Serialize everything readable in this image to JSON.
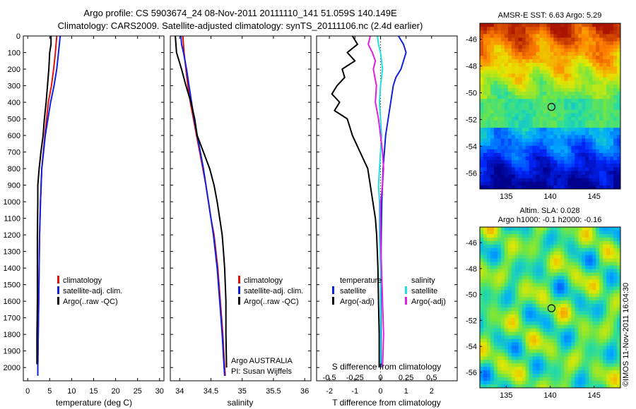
{
  "title": {
    "line1": "Argo profile: CS 5903674_24 08-Nov-2011 20111110_141 51.059S 140.149E",
    "line2": "Climatology: CARS2009. Satellite-adjusted climatology: synTS_20111106.nc (2.4d earlier)"
  },
  "colors": {
    "climatology": "#e01010",
    "satellite": "#1020e0",
    "argo": "#000000",
    "sat_salinity": "#20e0e0",
    "argo_salinity": "#e020e0"
  },
  "chart_data": [
    {
      "type": "line",
      "id": "temperature",
      "xlabel": "temperature (deg C)",
      "xlim": [
        -1,
        31
      ],
      "xticks": [
        0,
        5,
        10,
        15,
        20,
        25,
        30
      ],
      "ylim": [
        0,
        2080
      ],
      "yticks": [
        0,
        100,
        200,
        300,
        400,
        500,
        600,
        700,
        800,
        900,
        1000,
        1100,
        1200,
        1300,
        1400,
        1500,
        1600,
        1700,
        1800,
        1900,
        2000
      ],
      "legend": {
        "placement": "center-left",
        "entries": [
          "climatology",
          "satellite-adj. clim.",
          "Argo(..raw -QC)"
        ]
      },
      "series": [
        {
          "name": "climatology",
          "depth": [
            0,
            100,
            200,
            300,
            400,
            600,
            800,
            1000,
            1200,
            1400,
            1600,
            1800,
            2000,
            2050
          ],
          "values": [
            6.6,
            6.3,
            5.9,
            5.4,
            4.7,
            3.9,
            3.2,
            2.9,
            2.7,
            2.6,
            2.5,
            2.4,
            2.3,
            2.3
          ]
        },
        {
          "name": "satellite-adj. clim.",
          "depth": [
            0,
            50,
            100,
            200,
            300,
            400,
            600,
            800,
            1000,
            1200,
            1400,
            1600,
            1800,
            2000,
            2050
          ],
          "values": [
            7.4,
            7.2,
            7.0,
            6.6,
            6.0,
            5.2,
            4.0,
            3.2,
            2.9,
            2.7,
            2.6,
            2.5,
            2.4,
            2.3,
            2.3
          ]
        },
        {
          "name": "Argo(..raw -QC)",
          "depth": [
            0,
            50,
            100,
            200,
            300,
            400,
            500,
            600,
            700,
            800,
            900,
            1000,
            1200,
            1400,
            1600,
            1800,
            1980
          ],
          "values": [
            5.3,
            5.3,
            5.0,
            4.8,
            4.5,
            4.2,
            3.8,
            3.5,
            3.0,
            2.6,
            2.3,
            2.3,
            2.2,
            2.2,
            2.2,
            2.1,
            2.1
          ]
        }
      ]
    },
    {
      "type": "line",
      "id": "salinity",
      "xlabel": "salinity",
      "xlim": [
        33.85,
        36.1
      ],
      "xticks": [
        34,
        34.5,
        35,
        35.5,
        36
      ],
      "ylim": [
        0,
        2080
      ],
      "legend": {
        "placement": "center-left",
        "entries": [
          "climatology",
          "satellite-adj. clim.",
          "Argo(..raw -QC)"
        ]
      },
      "annotation": [
        "Argo AUSTRALIA",
        "PI: Susan Wijffels"
      ],
      "series": [
        {
          "name": "climatology",
          "depth": [
            0,
            100,
            200,
            300,
            400,
            500,
            600,
            700,
            800,
            900,
            1000,
            1100,
            1200,
            1400,
            1600,
            1800,
            2000,
            2050
          ],
          "values": [
            34.05,
            34.07,
            34.1,
            34.13,
            34.17,
            34.22,
            34.27,
            34.32,
            34.37,
            34.42,
            34.46,
            34.5,
            34.55,
            34.61,
            34.65,
            34.69,
            34.72,
            34.73
          ]
        },
        {
          "name": "satellite-adj. clim.",
          "depth": [
            0,
            50,
            100,
            200,
            300,
            400,
            500,
            600,
            700,
            800,
            900,
            1000,
            1100,
            1200,
            1400,
            1600,
            1800,
            2000,
            2050
          ],
          "values": [
            34.02,
            34.03,
            34.06,
            34.11,
            34.15,
            34.19,
            34.23,
            34.28,
            34.33,
            34.38,
            34.42,
            34.46,
            34.5,
            34.54,
            34.6,
            34.64,
            34.68,
            34.71,
            34.72
          ]
        },
        {
          "name": "Argo(..raw -QC)",
          "depth": [
            0,
            100,
            200,
            300,
            400,
            500,
            600,
            700,
            800,
            900,
            1000,
            1100,
            1200,
            1300,
            1400,
            1500,
            1600,
            1800,
            2000
          ],
          "values": [
            33.93,
            33.95,
            34.03,
            34.1,
            34.18,
            34.24,
            34.28,
            34.38,
            34.48,
            34.55,
            34.6,
            34.64,
            34.68,
            34.7,
            34.72,
            34.73,
            34.74,
            34.74,
            34.75
          ]
        }
      ]
    },
    {
      "type": "line",
      "id": "difference",
      "xlabel": "T difference from climatology",
      "xlabel_top": "S difference from climatology",
      "xlim": [
        -2.5,
        3.0
      ],
      "xticks": [
        -2,
        -1,
        0,
        1,
        2
      ],
      "sxticks": [
        {
          "value": -0.5,
          "label": "-0.5"
        },
        {
          "value": -0.25,
          "label": "-0.25"
        },
        {
          "value": 0,
          "label": "0"
        },
        {
          "value": 0.25,
          "label": "0.25"
        },
        {
          "value": 0.5,
          "label": "0.5"
        }
      ],
      "ylim": [
        0,
        2080
      ],
      "legend": {
        "placement": "bottom",
        "titles": [
          "temperature",
          "salinity"
        ],
        "entries": [
          "satellite",
          "Argo(-adj)",
          "satellite",
          "Argo(-adj)"
        ]
      },
      "series": [
        {
          "name": "temperature satellite",
          "depth": [
            0,
            50,
            100,
            150,
            200,
            250,
            300,
            400,
            500,
            600,
            700,
            800,
            1000,
            1200,
            1400,
            1600,
            1800,
            2000
          ],
          "values": [
            0.7,
            0.9,
            1.0,
            0.9,
            0.8,
            0.6,
            0.5,
            0.4,
            0.3,
            0.2,
            0.15,
            0.1,
            0.05,
            0.03,
            0.02,
            0.02,
            0.02,
            0.02
          ]
        },
        {
          "name": "temperature Argo(-adj)",
          "depth": [
            0,
            50,
            100,
            150,
            200,
            250,
            300,
            350,
            400,
            450,
            500,
            600,
            700,
            800,
            900,
            1000,
            1100,
            1200,
            1400,
            1600,
            1800,
            2000
          ],
          "values": [
            -1.1,
            -0.9,
            -1.3,
            -1.0,
            -1.5,
            -1.4,
            -1.7,
            -1.9,
            -1.6,
            -1.8,
            -1.3,
            -1.1,
            -0.8,
            -0.5,
            -0.4,
            -0.3,
            -0.2,
            -0.15,
            -0.1,
            -0.08,
            -0.05,
            -0.05
          ]
        },
        {
          "name": "salinity satellite",
          "depth": [
            0,
            50,
            100,
            200,
            300,
            400,
            500,
            600,
            700,
            800,
            900,
            1000,
            1200,
            1400,
            1600,
            1800,
            2000
          ],
          "values": [
            -0.03,
            -0.02,
            0.0,
            0.02,
            0.0,
            -0.01,
            0.0,
            0.01,
            0.0,
            -0.01,
            -0.02,
            -0.01,
            -0.01,
            0.0,
            0.0,
            0.0,
            0.0
          ]
        },
        {
          "name": "salinity Argo(-adj)",
          "depth": [
            0,
            50,
            100,
            150,
            200,
            300,
            400,
            500,
            600,
            700,
            800,
            900,
            1000,
            1200,
            1400,
            1600,
            1800,
            2000
          ],
          "values": [
            -0.1,
            -0.12,
            -0.08,
            -0.05,
            -0.07,
            -0.04,
            -0.05,
            -0.02,
            0.0,
            0.02,
            0.03,
            0.02,
            0.0,
            0.0,
            0.01,
            0.02,
            0.03,
            0.02
          ]
        }
      ]
    },
    {
      "type": "heatmap",
      "id": "sst_map",
      "title": "AMSR-E SST: 6.63 Argo: 5.29",
      "xlim": [
        132,
        148
      ],
      "ylim": [
        -57.2,
        -44.8
      ],
      "xticks": [
        135,
        140,
        145
      ],
      "yticks": [
        -46,
        -48,
        -50,
        -52,
        -54,
        -56
      ],
      "marker": {
        "lon": 140.15,
        "lat": -51.06
      }
    },
    {
      "type": "heatmap",
      "id": "sla_map",
      "title": "Altim. SLA: 0.028",
      "subtitle": "Argo h1000: -0.1 h2000: -0.16",
      "xlim": [
        132,
        148
      ],
      "ylim": [
        -57.2,
        -44.8
      ],
      "xticks": [
        135,
        140,
        145
      ],
      "yticks": [
        -46,
        -48,
        -50,
        -52,
        -54,
        -56
      ],
      "marker": {
        "lon": 140.15,
        "lat": -51.06
      }
    }
  ],
  "stamp": "©IMOS 11-Nov-2011 16:04:30"
}
